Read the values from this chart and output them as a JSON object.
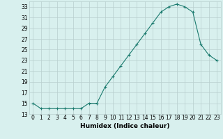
{
  "x": [
    0,
    1,
    2,
    3,
    4,
    5,
    6,
    7,
    8,
    9,
    10,
    11,
    12,
    13,
    14,
    15,
    16,
    17,
    18,
    19,
    20,
    21,
    22,
    23
  ],
  "y": [
    15,
    14,
    14,
    14,
    14,
    14,
    14,
    15,
    15,
    18,
    20,
    22,
    24,
    26,
    28,
    30,
    32,
    33,
    33.5,
    33,
    32,
    26,
    24,
    23
  ],
  "xlabel": "Humidex (Indice chaleur)",
  "ylim": [
    13,
    34
  ],
  "xlim": [
    -0.5,
    23.5
  ],
  "yticks": [
    13,
    15,
    17,
    19,
    21,
    23,
    25,
    27,
    29,
    31,
    33
  ],
  "xtick_labels": [
    "0",
    "1",
    "2",
    "3",
    "4",
    "5",
    "6",
    "7",
    "8",
    "9",
    "10",
    "11",
    "12",
    "13",
    "14",
    "15",
    "16",
    "17",
    "18",
    "19",
    "20",
    "21",
    "22",
    "23"
  ],
  "line_color": "#1a7a6e",
  "marker": "+",
  "marker_size": 3,
  "marker_linewidth": 0.8,
  "line_width": 0.8,
  "bg_color": "#d8f0ee",
  "grid_color": "#b8cece",
  "label_fontsize": 6.5,
  "tick_fontsize": 5.5
}
